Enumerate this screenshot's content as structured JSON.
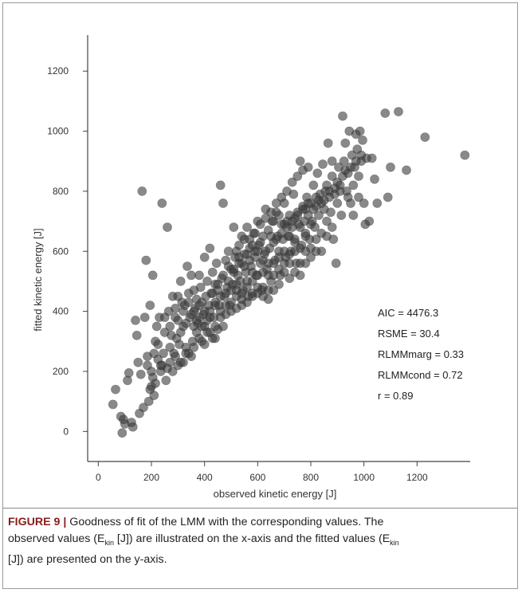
{
  "chart_data": {
    "type": "scatter",
    "xlabel": "observed kinetic energy [J]",
    "ylabel": "fitted kinetic energy [J]",
    "xlim": [
      -40,
      1400
    ],
    "ylim": [
      -100,
      1320
    ],
    "x_ticks": [
      0,
      200,
      400,
      600,
      800,
      1000,
      1200
    ],
    "y_ticks": [
      0,
      200,
      400,
      600,
      800,
      1000,
      1200
    ],
    "grid": false,
    "marker_color": "#3a3a3a",
    "annotations": [
      "AIC = 4476.3",
      "RSME = 30.4",
      "RLMMmarg = 0.33",
      "RLMMcond = 0.72",
      "r = 0.89"
    ],
    "points": [
      [
        55,
        90
      ],
      [
        65,
        140
      ],
      [
        85,
        50
      ],
      [
        90,
        -5
      ],
      [
        95,
        40
      ],
      [
        100,
        25
      ],
      [
        110,
        170
      ],
      [
        115,
        195
      ],
      [
        125,
        30
      ],
      [
        130,
        15
      ],
      [
        140,
        370
      ],
      [
        145,
        320
      ],
      [
        150,
        230
      ],
      [
        155,
        60
      ],
      [
        160,
        190
      ],
      [
        165,
        800
      ],
      [
        170,
        80
      ],
      [
        175,
        380
      ],
      [
        180,
        570
      ],
      [
        185,
        250
      ],
      [
        190,
        100
      ],
      [
        195,
        420
      ],
      [
        200,
        150
      ],
      [
        205,
        520
      ],
      [
        210,
        120
      ],
      [
        215,
        300
      ],
      [
        220,
        350
      ],
      [
        225,
        290
      ],
      [
        230,
        380
      ],
      [
        235,
        200
      ],
      [
        240,
        760
      ],
      [
        245,
        260
      ],
      [
        250,
        330
      ],
      [
        255,
        170
      ],
      [
        260,
        680
      ],
      [
        265,
        400
      ],
      [
        270,
        230
      ],
      [
        275,
        320
      ],
      [
        280,
        450
      ],
      [
        285,
        260
      ],
      [
        290,
        410
      ],
      [
        295,
        310
      ],
      [
        300,
        370
      ],
      [
        305,
        290
      ],
      [
        310,
        500
      ],
      [
        315,
        430
      ],
      [
        320,
        350
      ],
      [
        325,
        420
      ],
      [
        330,
        260
      ],
      [
        335,
        550
      ],
      [
        340,
        460
      ],
      [
        345,
        380
      ],
      [
        350,
        520
      ],
      [
        355,
        300
      ],
      [
        360,
        470
      ],
      [
        365,
        410
      ],
      [
        370,
        440
      ],
      [
        375,
        360
      ],
      [
        380,
        520
      ],
      [
        385,
        480
      ],
      [
        390,
        430
      ],
      [
        395,
        390
      ],
      [
        400,
        580
      ],
      [
        405,
        450
      ],
      [
        410,
        500
      ],
      [
        415,
        420
      ],
      [
        420,
        610
      ],
      [
        425,
        460
      ],
      [
        430,
        530
      ],
      [
        435,
        380
      ],
      [
        440,
        490
      ],
      [
        445,
        560
      ],
      [
        450,
        470
      ],
      [
        455,
        420
      ],
      [
        460,
        820
      ],
      [
        465,
        510
      ],
      [
        470,
        760
      ],
      [
        475,
        450
      ],
      [
        480,
        570
      ],
      [
        485,
        480
      ],
      [
        490,
        600
      ],
      [
        495,
        420
      ],
      [
        500,
        540
      ],
      [
        505,
        490
      ],
      [
        510,
        680
      ],
      [
        515,
        580
      ],
      [
        520,
        450
      ],
      [
        525,
        520
      ],
      [
        530,
        620
      ],
      [
        535,
        500
      ],
      [
        540,
        560
      ],
      [
        545,
        470
      ],
      [
        550,
        640
      ],
      [
        555,
        530
      ],
      [
        560,
        590
      ],
      [
        565,
        450
      ],
      [
        570,
        610
      ],
      [
        575,
        550
      ],
      [
        580,
        500
      ],
      [
        585,
        660
      ],
      [
        590,
        580
      ],
      [
        595,
        520
      ],
      [
        600,
        700
      ],
      [
        605,
        620
      ],
      [
        610,
        560
      ],
      [
        615,
        470
      ],
      [
        620,
        650
      ],
      [
        625,
        590
      ],
      [
        630,
        740
      ],
      [
        635,
        540
      ],
      [
        640,
        670
      ],
      [
        645,
        610
      ],
      [
        650,
        500
      ],
      [
        655,
        700
      ],
      [
        660,
        630
      ],
      [
        665,
        570
      ],
      [
        670,
        730
      ],
      [
        675,
        650
      ],
      [
        680,
        600
      ],
      [
        685,
        520
      ],
      [
        690,
        690
      ],
      [
        695,
        640
      ],
      [
        700,
        760
      ],
      [
        705,
        580
      ],
      [
        710,
        700
      ],
      [
        715,
        650
      ],
      [
        720,
        720
      ],
      [
        725,
        600
      ],
      [
        730,
        680
      ],
      [
        735,
        790
      ],
      [
        740,
        640
      ],
      [
        745,
        560
      ],
      [
        750,
        730
      ],
      [
        755,
        690
      ],
      [
        760,
        900
      ],
      [
        765,
        620
      ],
      [
        770,
        750
      ],
      [
        775,
        700
      ],
      [
        780,
        660
      ],
      [
        785,
        780
      ],
      [
        790,
        720
      ],
      [
        795,
        640
      ],
      [
        800,
        760
      ],
      [
        805,
        700
      ],
      [
        810,
        820
      ],
      [
        815,
        680
      ],
      [
        820,
        750
      ],
      [
        825,
        860
      ],
      [
        830,
        720
      ],
      [
        835,
        790
      ],
      [
        840,
        660
      ],
      [
        845,
        890
      ],
      [
        850,
        740
      ],
      [
        855,
        800
      ],
      [
        860,
        700
      ],
      [
        865,
        960
      ],
      [
        870,
        780
      ],
      [
        875,
        730
      ],
      [
        880,
        850
      ],
      [
        885,
        640
      ],
      [
        890,
        810
      ],
      [
        895,
        560
      ],
      [
        900,
        760
      ],
      [
        905,
        880
      ],
      [
        910,
        820
      ],
      [
        915,
        720
      ],
      [
        920,
        1050
      ],
      [
        925,
        900
      ],
      [
        930,
        960
      ],
      [
        935,
        800
      ],
      [
        940,
        860
      ],
      [
        945,
        1000
      ],
      [
        950,
        760
      ],
      [
        955,
        920
      ],
      [
        960,
        720
      ],
      [
        965,
        880
      ],
      [
        970,
        990
      ],
      [
        975,
        940
      ],
      [
        980,
        780
      ],
      [
        985,
        1000
      ],
      [
        990,
        900
      ],
      [
        995,
        970
      ],
      [
        1000,
        760
      ],
      [
        1005,
        690
      ],
      [
        1010,
        910
      ],
      [
        1020,
        700
      ],
      [
        1030,
        910
      ],
      [
        1040,
        840
      ],
      [
        1050,
        760
      ],
      [
        1080,
        1060
      ],
      [
        1090,
        780
      ],
      [
        1100,
        880
      ],
      [
        1130,
        1065
      ],
      [
        1160,
        870
      ],
      [
        1230,
        980
      ],
      [
        1380,
        920
      ],
      [
        520,
        600
      ],
      [
        540,
        650
      ],
      [
        560,
        680
      ],
      [
        580,
        620
      ],
      [
        600,
        600
      ],
      [
        620,
        570
      ],
      [
        640,
        560
      ],
      [
        660,
        700
      ],
      [
        680,
        720
      ],
      [
        700,
        690
      ],
      [
        720,
        650
      ],
      [
        740,
        710
      ],
      [
        760,
        680
      ],
      [
        780,
        740
      ],
      [
        800,
        690
      ],
      [
        820,
        780
      ],
      [
        840,
        760
      ],
      [
        860,
        820
      ],
      [
        880,
        900
      ],
      [
        900,
        830
      ],
      [
        920,
        850
      ],
      [
        940,
        780
      ],
      [
        960,
        820
      ],
      [
        980,
        850
      ],
      [
        440,
        430
      ],
      [
        460,
        450
      ],
      [
        480,
        420
      ],
      [
        500,
        470
      ],
      [
        520,
        490
      ],
      [
        540,
        440
      ],
      [
        560,
        480
      ],
      [
        580,
        460
      ],
      [
        600,
        520
      ],
      [
        620,
        480
      ],
      [
        640,
        520
      ],
      [
        660,
        560
      ],
      [
        680,
        540
      ],
      [
        700,
        600
      ],
      [
        720,
        560
      ],
      [
        740,
        600
      ],
      [
        760,
        610
      ],
      [
        780,
        650
      ],
      [
        800,
        610
      ],
      [
        820,
        640
      ],
      [
        840,
        600
      ],
      [
        860,
        650
      ],
      [
        880,
        680
      ],
      [
        360,
        400
      ],
      [
        380,
        420
      ],
      [
        400,
        400
      ],
      [
        420,
        400
      ],
      [
        440,
        420
      ],
      [
        460,
        400
      ],
      [
        480,
        460
      ],
      [
        500,
        430
      ],
      [
        520,
        470
      ],
      [
        540,
        460
      ],
      [
        560,
        500
      ],
      [
        580,
        530
      ],
      [
        600,
        480
      ],
      [
        620,
        530
      ],
      [
        640,
        470
      ],
      [
        660,
        520
      ],
      [
        680,
        580
      ],
      [
        700,
        560
      ],
      [
        720,
        590
      ],
      [
        740,
        630
      ],
      [
        760,
        560
      ],
      [
        780,
        600
      ],
      [
        800,
        580
      ],
      [
        820,
        600
      ],
      [
        300,
        450
      ],
      [
        320,
        400
      ],
      [
        340,
        430
      ],
      [
        360,
        350
      ],
      [
        380,
        380
      ],
      [
        400,
        350
      ],
      [
        420,
        380
      ],
      [
        440,
        350
      ],
      [
        460,
        380
      ],
      [
        480,
        390
      ],
      [
        500,
        400
      ],
      [
        520,
        410
      ],
      [
        540,
        420
      ],
      [
        560,
        430
      ],
      [
        580,
        450
      ],
      [
        600,
        460
      ],
      [
        620,
        450
      ],
      [
        640,
        440
      ],
      [
        660,
        470
      ],
      [
        680,
        490
      ],
      [
        700,
        530
      ],
      [
        720,
        510
      ],
      [
        740,
        530
      ],
      [
        760,
        520
      ],
      [
        780,
        560
      ],
      [
        270,
        280
      ],
      [
        290,
        250
      ],
      [
        310,
        230
      ],
      [
        330,
        280
      ],
      [
        350,
        250
      ],
      [
        370,
        330
      ],
      [
        390,
        300
      ],
      [
        410,
        330
      ],
      [
        430,
        310
      ],
      [
        450,
        340
      ],
      [
        470,
        350
      ],
      [
        490,
        500
      ],
      [
        510,
        530
      ],
      [
        530,
        560
      ],
      [
        550,
        590
      ],
      [
        570,
        640
      ],
      [
        590,
        660
      ],
      [
        610,
        690
      ],
      [
        630,
        710
      ],
      [
        650,
        730
      ],
      [
        670,
        760
      ],
      [
        690,
        780
      ],
      [
        710,
        800
      ],
      [
        730,
        830
      ],
      [
        750,
        850
      ],
      [
        770,
        870
      ],
      [
        790,
        880
      ],
      [
        240,
        220
      ],
      [
        260,
        210
      ],
      [
        280,
        200
      ],
      [
        300,
        220
      ],
      [
        320,
        230
      ],
      [
        340,
        260
      ],
      [
        360,
        280
      ],
      [
        380,
        310
      ],
      [
        400,
        290
      ],
      [
        420,
        330
      ],
      [
        440,
        310
      ],
      [
        250,
        380
      ],
      [
        270,
        350
      ],
      [
        290,
        380
      ],
      [
        310,
        330
      ],
      [
        330,
        360
      ],
      [
        350,
        390
      ],
      [
        370,
        370
      ],
      [
        390,
        350
      ],
      [
        410,
        370
      ],
      [
        430,
        460
      ],
      [
        450,
        490
      ],
      [
        470,
        520
      ],
      [
        490,
        550
      ],
      [
        510,
        540
      ],
      [
        530,
        580
      ],
      [
        550,
        550
      ],
      [
        570,
        570
      ],
      [
        590,
        600
      ],
      [
        610,
        630
      ],
      [
        630,
        600
      ],
      [
        650,
        650
      ],
      [
        670,
        640
      ],
      [
        690,
        660
      ],
      [
        710,
        680
      ],
      [
        730,
        700
      ],
      [
        750,
        720
      ],
      [
        770,
        740
      ],
      [
        790,
        760
      ],
      [
        810,
        740
      ],
      [
        830,
        770
      ],
      [
        850,
        770
      ],
      [
        870,
        800
      ],
      [
        890,
        790
      ],
      [
        910,
        800
      ],
      [
        930,
        870
      ],
      [
        950,
        880
      ],
      [
        970,
        900
      ],
      [
        990,
        920
      ],
      [
        185,
        220
      ],
      [
        200,
        200
      ],
      [
        210,
        260
      ],
      [
        225,
        240
      ],
      [
        205,
        180
      ],
      [
        215,
        160
      ],
      [
        235,
        220
      ],
      [
        195,
        140
      ]
    ]
  },
  "caption": {
    "label": "FIGURE 9 |",
    "line1": " Goodness of fit of the LMM with the corresponding values. The",
    "line2_a": "observed values (E",
    "sub": "kin",
    "line2_b": " [J]) are illustrated on the x-axis and the fitted values (E",
    "line3": "[J]) are presented on the y-axis."
  }
}
